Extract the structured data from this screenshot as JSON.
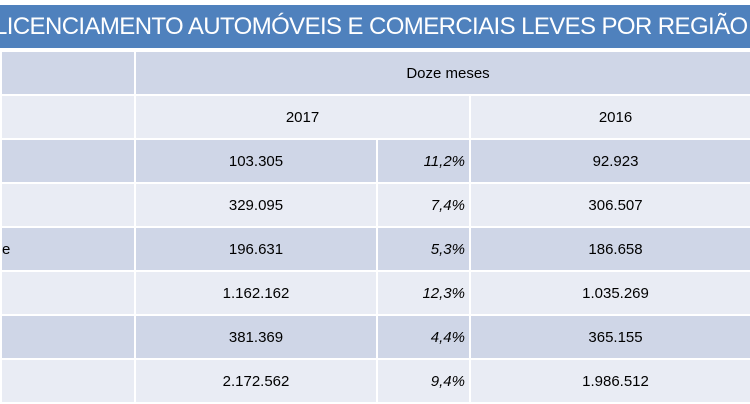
{
  "title": "LICENCIAMENTO AUTOMÓVEIS E COMERCIAIS LEVES POR REGIÃO",
  "header": {
    "period": "Doze meses",
    "year_a": "2017",
    "year_b": "2016"
  },
  "rows": [
    {
      "label": "",
      "v2017": "103.305",
      "pct": "11,2%",
      "v2016": "92.923"
    },
    {
      "label": "",
      "v2017": "329.095",
      "pct": "7,4%",
      "v2016": "306.507"
    },
    {
      "label": "e",
      "v2017": "196.631",
      "pct": "5,3%",
      "v2016": "186.658"
    },
    {
      "label": "",
      "v2017": "1.162.162",
      "pct": "12,3%",
      "v2016": "1.035.269"
    },
    {
      "label": "",
      "v2017": "381.369",
      "pct": "4,4%",
      "v2016": "365.155"
    },
    {
      "label": "",
      "v2017": "2.172.562",
      "pct": "9,4%",
      "v2016": "1.986.512"
    }
  ],
  "colors": {
    "title_bg": "#4f81bd",
    "row_dark": "#cfd6e7",
    "row_light": "#e9ecf4"
  }
}
